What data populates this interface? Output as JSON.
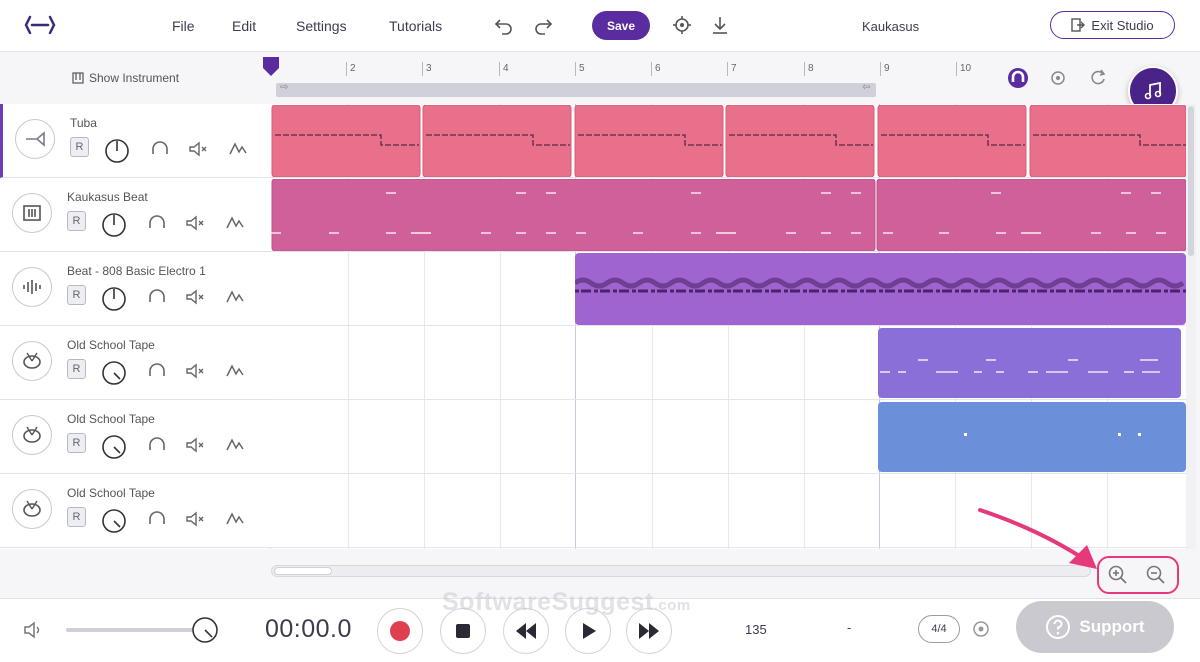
{
  "menu": {
    "file": "File",
    "edit": "Edit",
    "settings": "Settings",
    "tutorials": "Tutorials"
  },
  "toolbar": {
    "save_label": "Save"
  },
  "project": {
    "name": "Kaukasus",
    "exit_label": "Exit Studio"
  },
  "timeline": {
    "show_instrument_label": "Show Instrument",
    "ruler_numbers": [
      "2",
      "3",
      "4",
      "5",
      "6",
      "7",
      "8",
      "9",
      "10"
    ]
  },
  "tracks": [
    {
      "name": "Tuba",
      "record_label": "R",
      "icon": "tuba-icon"
    },
    {
      "name": "Kaukasus Beat",
      "record_label": "R",
      "icon": "drum-machine-icon"
    },
    {
      "name": "Beat - 808 Basic Electro 1",
      "record_label": "R",
      "icon": "waveform-icon"
    },
    {
      "name": "Old School Tape",
      "record_label": "R",
      "icon": "drum-icon"
    },
    {
      "name": "Old School Tape",
      "record_label": "R",
      "icon": "drum-icon"
    },
    {
      "name": "Old School Tape",
      "record_label": "R",
      "icon": "drum-icon"
    }
  ],
  "colors": {
    "accent": "#5a2ca0",
    "tuba_clip": "#e8708a",
    "beat_clip": "#d0609a",
    "electro_clip": "#9f64d0",
    "tape_clip_1": "#8b6fd8",
    "tape_clip_2": "#6b8fd8",
    "teal_fab": "#6aa3b8",
    "highlight": "#e6397b"
  },
  "transport": {
    "time": "00:00.0",
    "bpm": "135",
    "key": "-",
    "signature": "4/4"
  },
  "support": {
    "label": "Support"
  },
  "watermark": {
    "brand": "SoftwareSuggest",
    "suffix": ".com"
  }
}
